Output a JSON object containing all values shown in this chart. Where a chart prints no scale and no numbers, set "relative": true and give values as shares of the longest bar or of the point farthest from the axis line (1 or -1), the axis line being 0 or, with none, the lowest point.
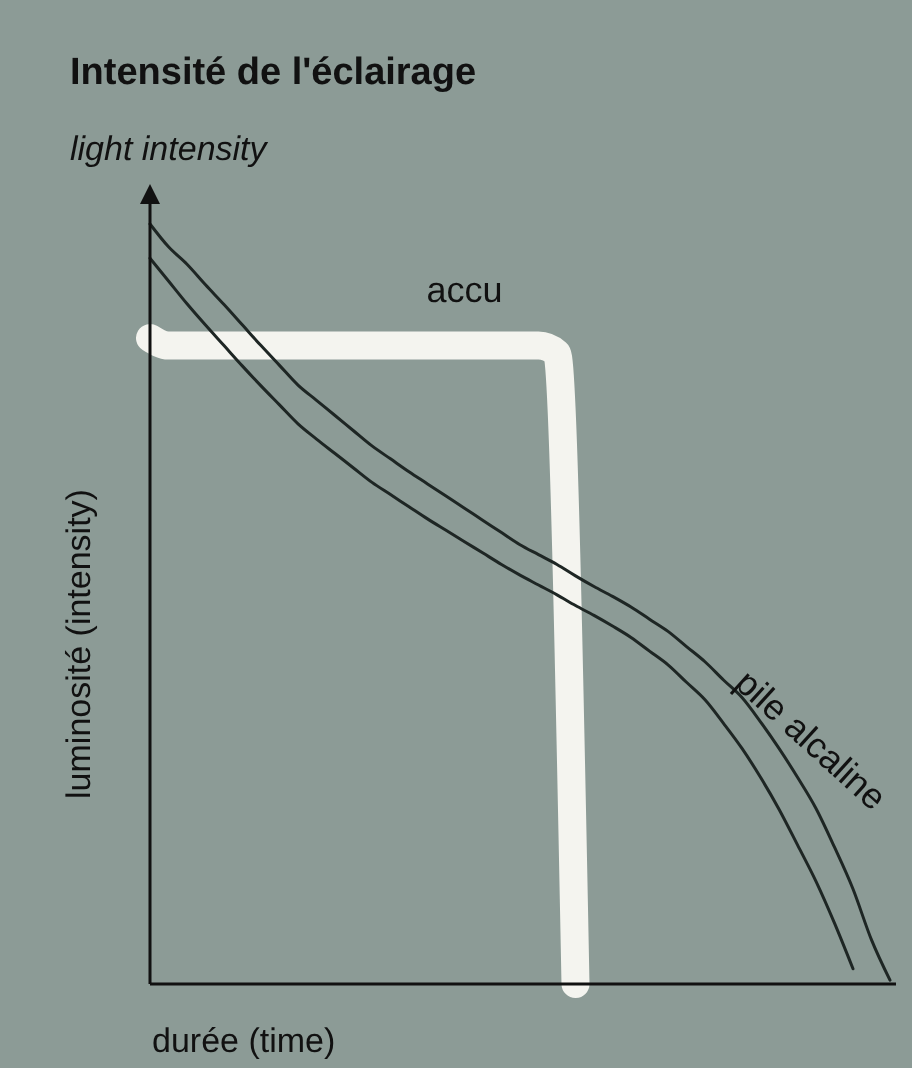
{
  "chart_data": {
    "type": "line",
    "relative": true,
    "tick_labels": false,
    "title": "Intensité de l'éclairage",
    "subtitle": "light intensity",
    "xlabel": "durée (time)",
    "ylabel": "luminosité (intensity)",
    "categories": [
      null,
      null,
      null,
      null,
      null,
      null,
      null,
      null,
      null,
      null,
      null,
      null,
      null,
      null,
      null,
      null,
      null,
      null,
      null,
      null,
      null,
      null,
      null,
      null,
      null,
      null,
      null,
      null,
      null,
      null,
      null,
      null,
      null,
      null,
      null,
      null,
      null,
      null,
      null,
      null,
      null
    ],
    "series": [
      {
        "name": "accu",
        "color": "#f4f4ef",
        "values": [
          0.85,
          0.84,
          0.84,
          0.84,
          0.84,
          0.84,
          0.84,
          0.84,
          0.84,
          0.84,
          0.84,
          0.84,
          0.84,
          0.84,
          0.84,
          0.84,
          0.84,
          0.84,
          0.84,
          0.84,
          0.84,
          0.84,
          0.83,
          0,
          null,
          null,
          null,
          null,
          null,
          null,
          null,
          null,
          null,
          null,
          null,
          null,
          null,
          null,
          null,
          null,
          null
        ]
      },
      {
        "name": "pile alcaline",
        "color": "#1e2624",
        "values": [
          1,
          0.97,
          0.947,
          0.92,
          0.894,
          0.867,
          0.84,
          0.814,
          0.788,
          0.768,
          0.748,
          0.728,
          0.708,
          0.691,
          0.674,
          0.658,
          0.642,
          0.626,
          0.61,
          0.594,
          0.578,
          0.565,
          0.552,
          0.537,
          0.523,
          0.51,
          0.496,
          0.48,
          0.464,
          0.444,
          0.424,
          0.4,
          0.377,
          0.345,
          0.31,
          0.272,
          0.231,
          0.18,
          0.125,
          0.058,
          0.005
        ]
      },
      {
        "color": "#1e2624",
        "values": [
          0.955,
          0.925,
          0.895,
          0.867,
          0.84,
          0.813,
          0.787,
          0.762,
          0.737,
          0.717,
          0.698,
          0.679,
          0.66,
          0.644,
          0.628,
          0.612,
          0.597,
          0.582,
          0.567,
          0.552,
          0.538,
          0.525,
          0.512,
          0.498,
          0.485,
          0.471,
          0.456,
          0.438,
          0.42,
          0.397,
          0.374,
          0.343,
          0.31,
          0.272,
          0.23,
          0.183,
          0.135,
          0.08,
          0.02,
          null,
          null
        ]
      }
    ]
  }
}
